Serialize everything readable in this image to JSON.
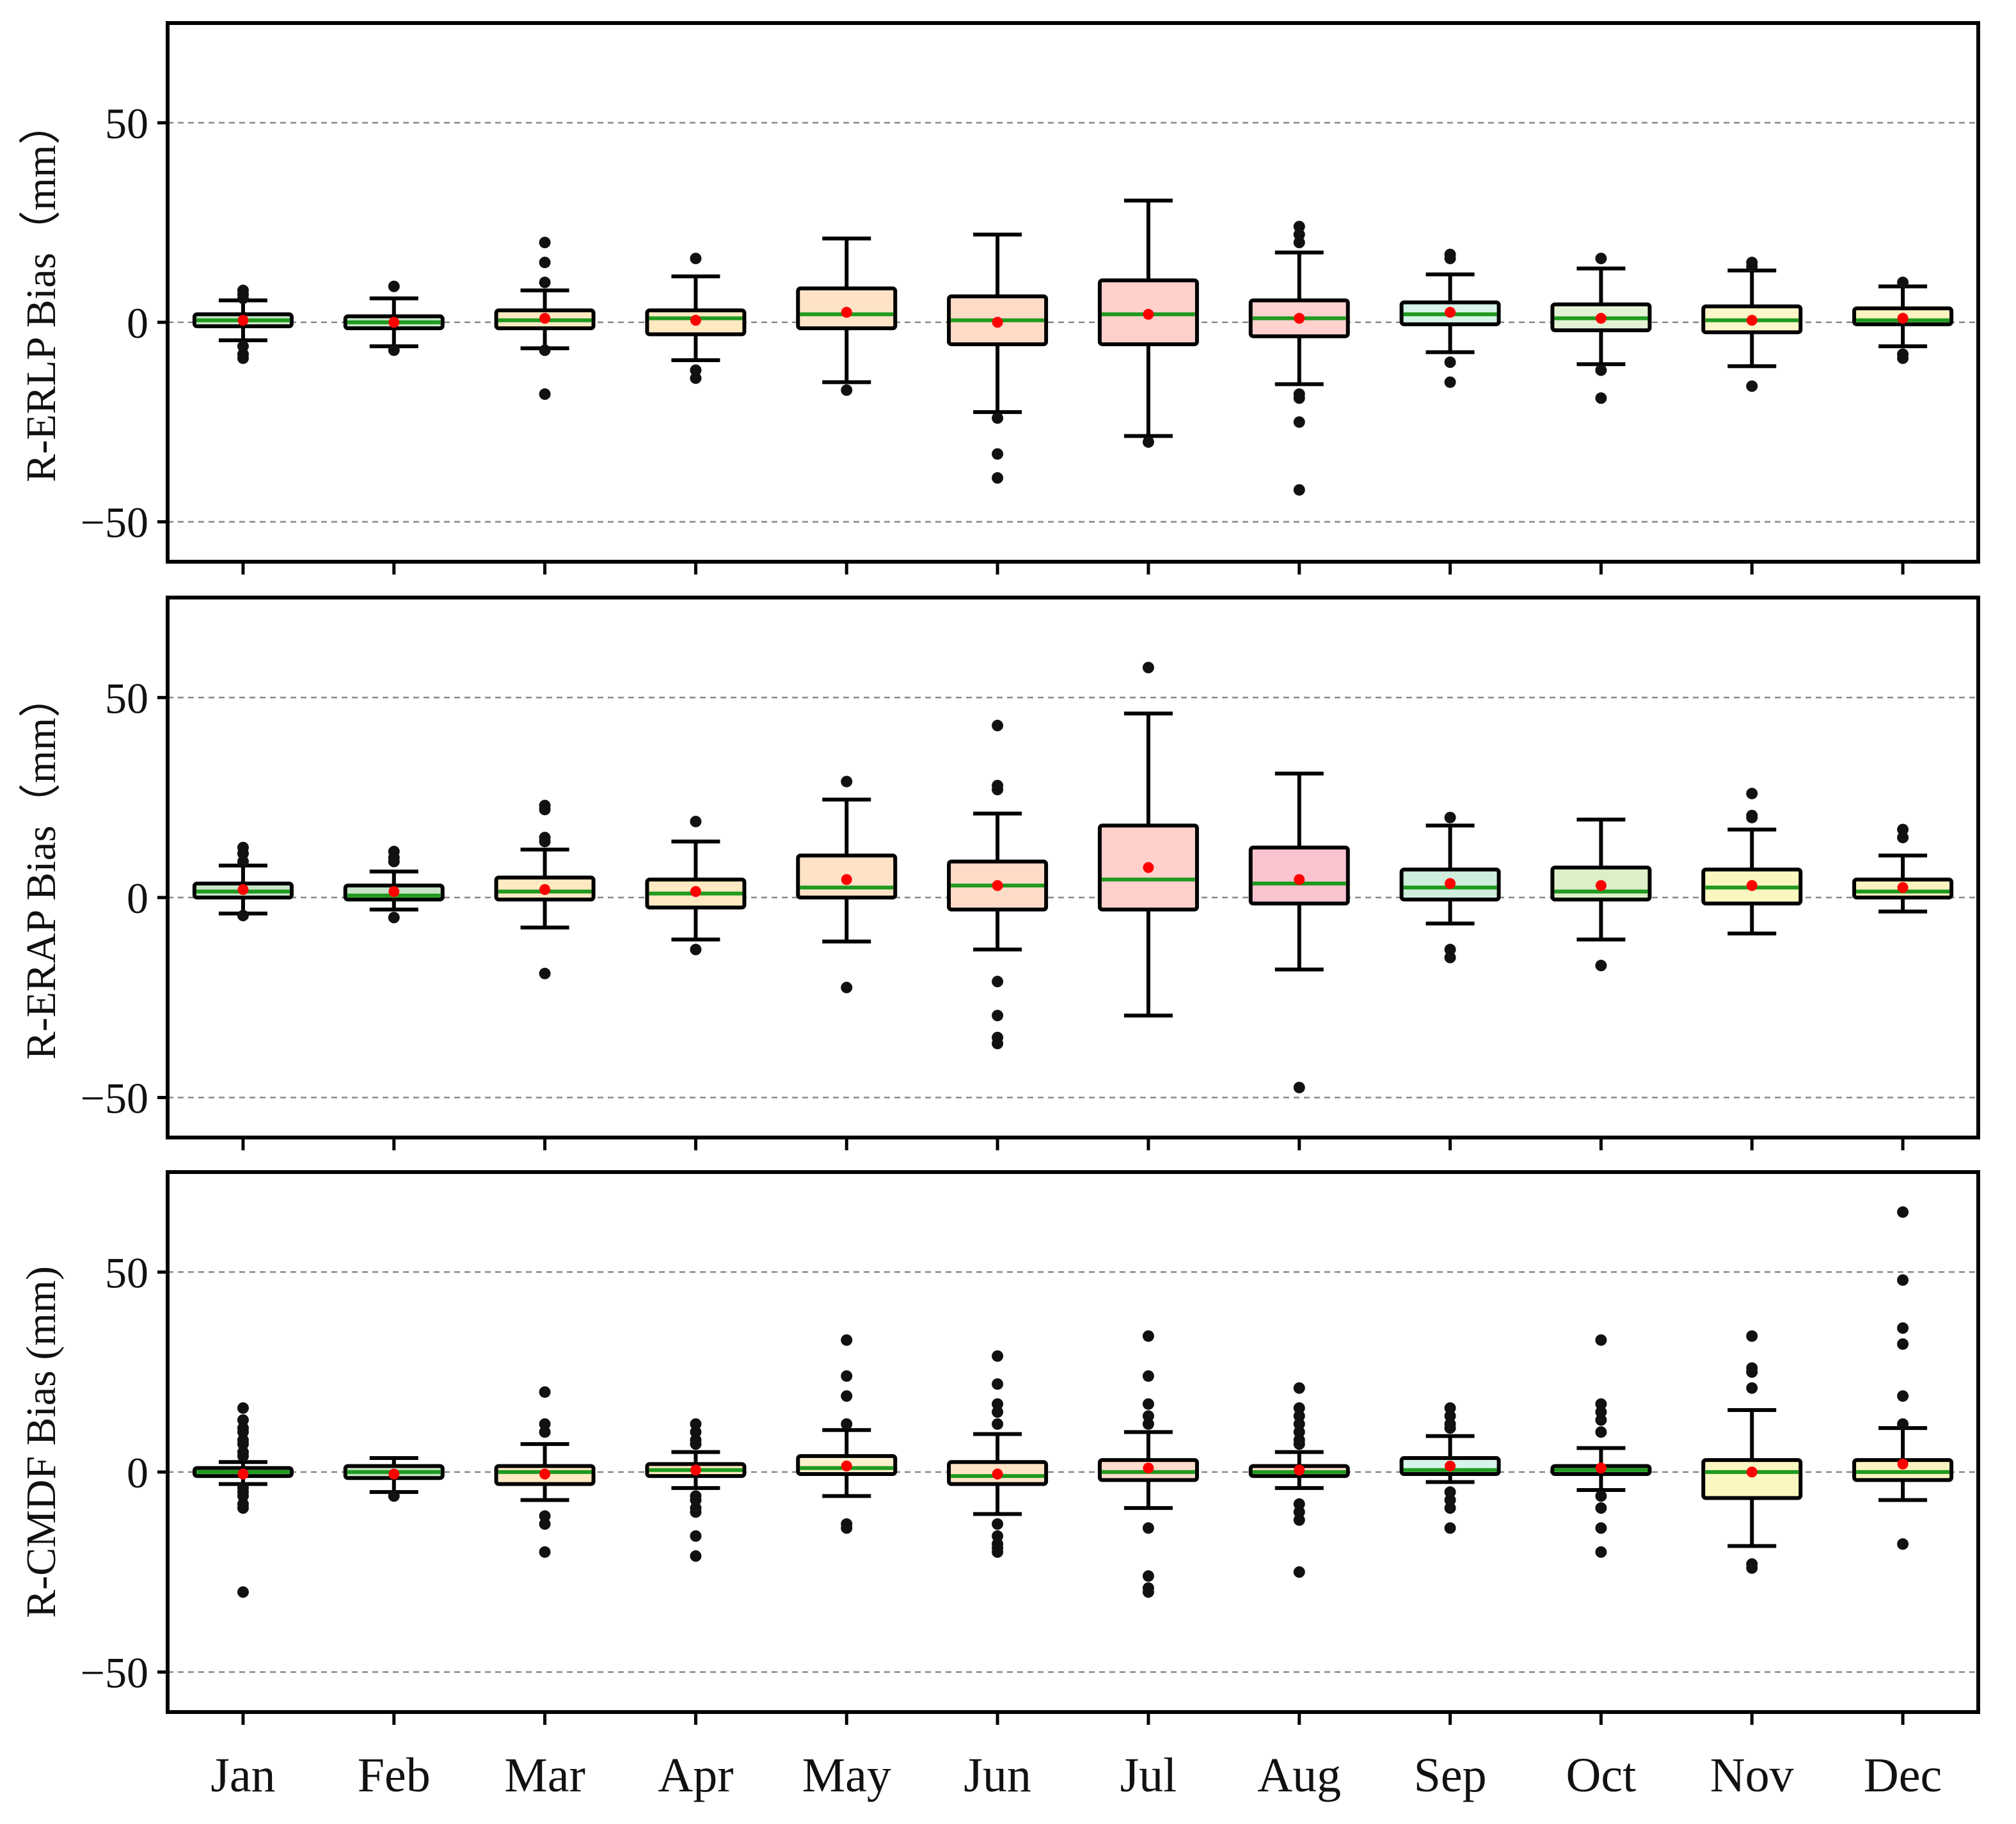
{
  "chart_data": {
    "type": "boxplot",
    "categories": [
      "Jan",
      "Feb",
      "Mar",
      "Apr",
      "May",
      "Jun",
      "Jul",
      "Aug",
      "Sep",
      "Oct",
      "Nov",
      "Dec"
    ],
    "ylim": [
      -60,
      75
    ],
    "yticks": [
      50,
      0,
      -50
    ],
    "ytick_labels": [
      "50",
      "0",
      "−50"
    ],
    "gridlines": [
      50,
      0,
      -50
    ],
    "xlabel": "",
    "colors": {
      "median": "#1f9a1f",
      "mean": "#ff0000",
      "outlier": "#111111",
      "frame": "#000000",
      "grid": "#888888"
    },
    "panels": [
      {
        "ylabel": "R-ERLP Bias（mm）",
        "boxes": [
          {
            "q1": -1,
            "q3": 2,
            "median": 0.5,
            "mean": 0.5,
            "whisker_low": -4.5,
            "whisker_high": 5.5,
            "outliers": [
              8,
              7,
              6,
              -6,
              -8,
              -9
            ],
            "color": "#c8e6c9"
          },
          {
            "q1": -1.5,
            "q3": 1.5,
            "median": 0,
            "mean": 0,
            "whisker_low": -6,
            "whisker_high": 6,
            "outliers": [
              9,
              -7
            ],
            "color": "#c8e6c9"
          },
          {
            "q1": -1.5,
            "q3": 3,
            "median": 0.5,
            "mean": 1,
            "whisker_low": -6.5,
            "whisker_high": 8,
            "outliers": [
              20,
              15,
              10,
              -7,
              -18
            ],
            "color": "#ffe9c2"
          },
          {
            "q1": -3,
            "q3": 3,
            "median": 1,
            "mean": 0.5,
            "whisker_low": -9.5,
            "whisker_high": 11.5,
            "outliers": [
              16,
              -12,
              -14
            ],
            "color": "#ffe9c2"
          },
          {
            "q1": -1.5,
            "q3": 8.5,
            "median": 2,
            "mean": 2.5,
            "whisker_low": -15,
            "whisker_high": 21,
            "outliers": [
              -17
            ],
            "color": "#ffe3c6"
          },
          {
            "q1": -5.5,
            "q3": 6.5,
            "median": 0.5,
            "mean": 0,
            "whisker_low": -22.5,
            "whisker_high": 22,
            "outliers": [
              -24,
              -33,
              -39
            ],
            "color": "#ffdcc8"
          },
          {
            "q1": -5.5,
            "q3": 10.5,
            "median": 2,
            "mean": 2,
            "whisker_low": -28.5,
            "whisker_high": 30.5,
            "outliers": [
              -30
            ],
            "color": "#ffd0cc"
          },
          {
            "q1": -3.5,
            "q3": 5.5,
            "median": 1,
            "mean": 1,
            "whisker_low": -15.5,
            "whisker_high": 17.5,
            "outliers": [
              24,
              22,
              20,
              -18,
              -19,
              -25,
              -42
            ],
            "color": "#ffd2d0"
          },
          {
            "q1": -0.5,
            "q3": 5,
            "median": 2,
            "mean": 2.5,
            "whisker_low": -7.5,
            "whisker_high": 12,
            "outliers": [
              17,
              16,
              -10,
              -15
            ],
            "color": "#d6f5e8"
          },
          {
            "q1": -2,
            "q3": 4.5,
            "median": 1,
            "mean": 1,
            "whisker_low": -10.5,
            "whisker_high": 13.5,
            "outliers": [
              16,
              -12,
              -19
            ],
            "color": "#e3f2d4"
          },
          {
            "q1": -2.5,
            "q3": 4,
            "median": 0.5,
            "mean": 0.5,
            "whisker_low": -11,
            "whisker_high": 13,
            "outliers": [
              15,
              14,
              -16
            ],
            "color": "#fbf7c8"
          },
          {
            "q1": -0.5,
            "q3": 3.5,
            "median": 0.5,
            "mean": 1,
            "whisker_low": -6,
            "whisker_high": 9,
            "outliers": [
              10,
              -8,
              -9
            ],
            "color": "#fbf3c0"
          }
        ]
      },
      {
        "ylabel": "R-ERAP Bias（mm）",
        "boxes": [
          {
            "q1": 0,
            "q3": 3.5,
            "median": 1.5,
            "mean": 2,
            "whisker_low": -4,
            "whisker_high": 8,
            "outliers": [
              12.5,
              11,
              9,
              -4.5
            ],
            "color": "#c8e6c9"
          },
          {
            "q1": -0.5,
            "q3": 3,
            "median": 0.5,
            "mean": 1.5,
            "whisker_low": -3,
            "whisker_high": 6.5,
            "outliers": [
              11.5,
              10,
              9,
              -5
            ],
            "color": "#c8e6c9"
          },
          {
            "q1": -0.5,
            "q3": 5,
            "median": 1.5,
            "mean": 2,
            "whisker_low": -7.5,
            "whisker_high": 12,
            "outliers": [
              23,
              22,
              15,
              14,
              -19
            ],
            "color": "#ffe9c2"
          },
          {
            "q1": -2.5,
            "q3": 4.5,
            "median": 1,
            "mean": 1.5,
            "whisker_low": -10.5,
            "whisker_high": 14,
            "outliers": [
              19,
              -13
            ],
            "color": "#ffe9c2"
          },
          {
            "q1": 0,
            "q3": 10.5,
            "median": 2.5,
            "mean": 4.5,
            "whisker_low": -11,
            "whisker_high": 24.5,
            "outliers": [
              29,
              -22.5
            ],
            "color": "#ffe3c6"
          },
          {
            "q1": -3,
            "q3": 9,
            "median": 3,
            "mean": 3,
            "whisker_low": -13,
            "whisker_high": 21,
            "outliers": [
              43,
              28,
              27,
              -21,
              -29.5,
              -35,
              -36.5
            ],
            "color": "#ffdcc8"
          },
          {
            "q1": -3,
            "q3": 18,
            "median": 4.5,
            "mean": 7.5,
            "whisker_low": -29.5,
            "whisker_high": 46,
            "outliers": [
              57.5
            ],
            "color": "#ffd0cc"
          },
          {
            "q1": -1.5,
            "q3": 12.5,
            "median": 3.5,
            "mean": 4.5,
            "whisker_low": -18,
            "whisker_high": 31,
            "outliers": [
              -47.5
            ],
            "color": "#fac4cf"
          },
          {
            "q1": -0.5,
            "q3": 7,
            "median": 2.5,
            "mean": 3.5,
            "whisker_low": -6.5,
            "whisker_high": 18,
            "outliers": [
              20,
              -13,
              -15
            ],
            "color": "#cfeedd"
          },
          {
            "q1": -0.5,
            "q3": 7.5,
            "median": 1.5,
            "mean": 3,
            "whisker_low": -10.5,
            "whisker_high": 19.5,
            "outliers": [
              -17
            ],
            "color": "#dcefc8"
          },
          {
            "q1": -1.5,
            "q3": 7,
            "median": 2.5,
            "mean": 3,
            "whisker_low": -9,
            "whisker_high": 17,
            "outliers": [
              26,
              20.5,
              20
            ],
            "color": "#fbf7c0"
          },
          {
            "q1": 0,
            "q3": 4.5,
            "median": 1.5,
            "mean": 2.5,
            "whisker_low": -3.5,
            "whisker_high": 10.5,
            "outliers": [
              17,
              15
            ],
            "color": "#fbf3c0"
          }
        ]
      },
      {
        "ylabel": "R-CMDF Bias (mm)",
        "boxes": [
          {
            "q1": -1,
            "q3": 1,
            "median": 0,
            "mean": -0.5,
            "whisker_low": -3,
            "whisker_high": 2.5,
            "outliers": [
              16,
              13,
              11,
              10,
              8,
              7,
              5,
              4,
              -4,
              -5,
              -6,
              -8,
              -9,
              -30
            ],
            "color": "#c8e6c9"
          },
          {
            "q1": -1.5,
            "q3": 1.5,
            "median": 0,
            "mean": -0.5,
            "whisker_low": -5,
            "whisker_high": 3.5,
            "outliers": [
              -6
            ],
            "color": "#c8e6c9"
          },
          {
            "q1": -3,
            "q3": 1.5,
            "median": 0,
            "mean": -0.5,
            "whisker_low": -7,
            "whisker_high": 7,
            "outliers": [
              20,
              12,
              10,
              -11,
              -13,
              -20
            ],
            "color": "#ffe9c2"
          },
          {
            "q1": -1,
            "q3": 2,
            "median": 0.5,
            "mean": 0.5,
            "whisker_low": -4,
            "whisker_high": 5,
            "outliers": [
              12,
              10,
              8,
              7,
              -6,
              -7,
              -9,
              -10,
              -16,
              -21
            ],
            "color": "#ffe9c2"
          },
          {
            "q1": -0.5,
            "q3": 4,
            "median": 1,
            "mean": 1.5,
            "whisker_low": -6,
            "whisker_high": 10.5,
            "outliers": [
              33,
              24,
              19,
              12,
              -13,
              -14
            ],
            "color": "#fff0d0"
          },
          {
            "q1": -3,
            "q3": 2.5,
            "median": -1,
            "mean": -0.5,
            "whisker_low": -10.5,
            "whisker_high": 9.5,
            "outliers": [
              29,
              22,
              17,
              15,
              12,
              -13,
              -16,
              -18,
              -19,
              -20
            ],
            "color": "#ffe3c6"
          },
          {
            "q1": -2,
            "q3": 3,
            "median": 0,
            "mean": 1,
            "whisker_low": -9,
            "whisker_high": 10,
            "outliers": [
              34,
              24,
              17,
              14,
              12,
              -14,
              -26,
              -29,
              -30
            ],
            "color": "#ffdccc"
          },
          {
            "q1": -1,
            "q3": 1.5,
            "median": 0,
            "mean": 0.5,
            "whisker_low": -4,
            "whisker_high": 5,
            "outliers": [
              21,
              16,
              14,
              12,
              10,
              8,
              7,
              -8,
              -10,
              -12,
              -25
            ],
            "color": "#ffe0d0"
          },
          {
            "q1": -0.5,
            "q3": 3.5,
            "median": 0.5,
            "mean": 1.5,
            "whisker_low": -2.5,
            "whisker_high": 9,
            "outliers": [
              16,
              14,
              12,
              11,
              -5,
              -7,
              -9,
              -14
            ],
            "color": "#d6f5e8"
          },
          {
            "q1": -0.5,
            "q3": 1.5,
            "median": 0.5,
            "mean": 1,
            "whisker_low": -4.5,
            "whisker_high": 6,
            "outliers": [
              33,
              17,
              15,
              13,
              10,
              -6,
              -9,
              -14,
              -20
            ],
            "color": "#e3f2d4"
          },
          {
            "q1": -6.5,
            "q3": 3,
            "median": 0,
            "mean": 0,
            "whisker_low": -18.5,
            "whisker_high": 15.5,
            "outliers": [
              34,
              26,
              25,
              21,
              -23,
              -24
            ],
            "color": "#fbf7c0"
          },
          {
            "q1": -2,
            "q3": 3,
            "median": 0,
            "mean": 2,
            "whisker_low": -7,
            "whisker_high": 11,
            "outliers": [
              65,
              48,
              36,
              32,
              19,
              12,
              -18
            ],
            "color": "#fbf3c0"
          }
        ]
      }
    ]
  }
}
